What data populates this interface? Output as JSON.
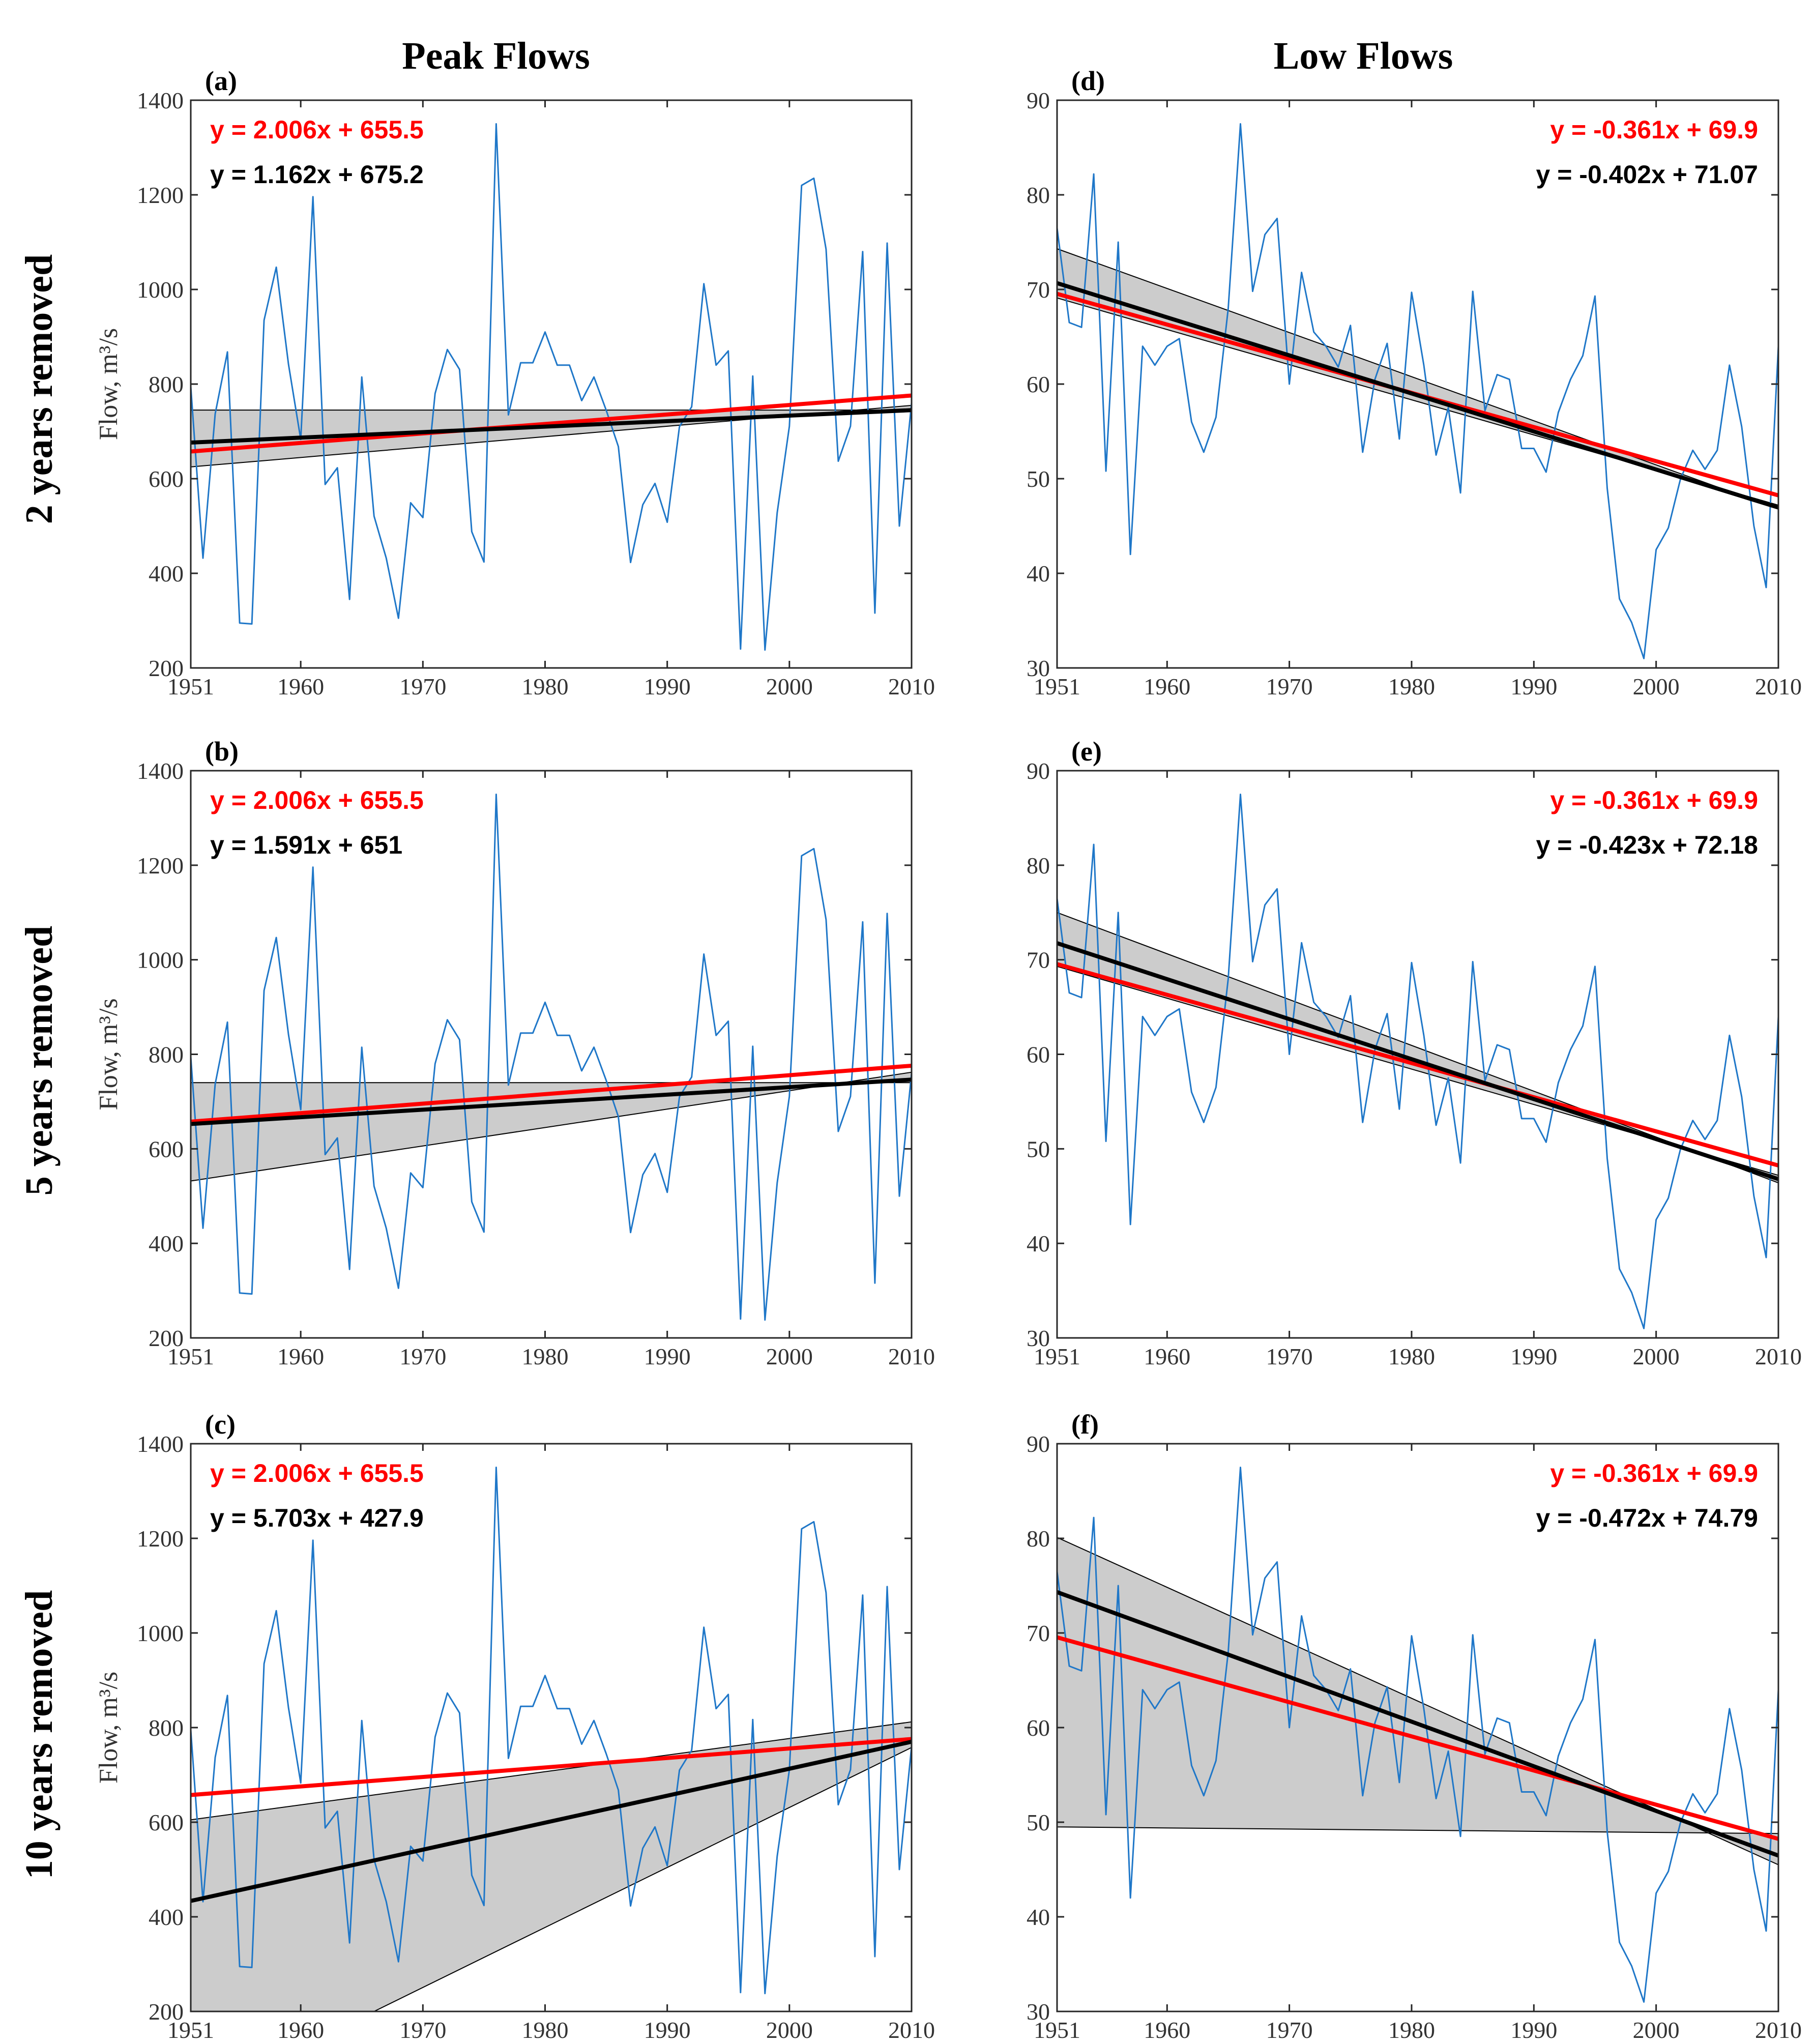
{
  "figure": {
    "col_titles": [
      "Peak Flows",
      "Low Flows"
    ],
    "row_titles": [
      "2 years removed",
      "5 years removed",
      "10 years removed"
    ],
    "colors": {
      "observed": "#1f77c8",
      "full_trend": "#ff0000",
      "reduced_trend": "#000000",
      "band": "#cccccc"
    }
  },
  "chart_data": [
    {
      "id": "a",
      "label": "(a)",
      "type": "line",
      "col": 0,
      "row": 0,
      "ylabel": "Flow, m³/s",
      "xlim": [
        1951,
        2010
      ],
      "ylim": [
        200,
        1400
      ],
      "xticks": [
        1951,
        1960,
        1970,
        1980,
        1990,
        2000,
        2010
      ],
      "yticks": [
        200,
        400,
        600,
        800,
        1000,
        1200,
        1400
      ],
      "x_start": 1951,
      "values": [
        795,
        432,
        737,
        868,
        295,
        293,
        935,
        1047,
        842,
        683,
        1196,
        588,
        623,
        345,
        815,
        521,
        432,
        305,
        549,
        518,
        780,
        873,
        831,
        488,
        424,
        1350,
        735,
        845,
        845,
        910,
        840,
        840,
        765,
        815,
        745,
        668,
        423,
        545,
        590,
        508,
        710,
        752,
        1012,
        840,
        870,
        240,
        817,
        238,
        528,
        711,
        1220,
        1235,
        1085,
        637,
        711,
        1080,
        316,
        1098,
        500,
        760
      ],
      "trend_full": {
        "slope": 2.006,
        "intercept": 655.5
      },
      "trend_reduced": {
        "slope": 1.162,
        "intercept": 675.2
      },
      "band": {
        "upper": [
          [
            1951,
            745
          ],
          [
            2010,
            745
          ]
        ],
        "lower": [
          [
            1951,
            625
          ],
          [
            2010,
            755
          ]
        ]
      },
      "eq_full": "y = 2.006x + 655.5",
      "eq_reduced": "y = 1.162x + 675.2",
      "eq_align": "left"
    },
    {
      "id": "b",
      "label": "(b)",
      "type": "line",
      "col": 0,
      "row": 1,
      "ylabel": "Flow, m³/s",
      "xlim": [
        1951,
        2010
      ],
      "ylim": [
        200,
        1400
      ],
      "xticks": [
        1951,
        1960,
        1970,
        1980,
        1990,
        2000,
        2010
      ],
      "yticks": [
        200,
        400,
        600,
        800,
        1000,
        1200,
        1400
      ],
      "x_start": 1951,
      "values": [
        795,
        432,
        737,
        868,
        295,
        293,
        935,
        1047,
        842,
        683,
        1196,
        588,
        623,
        345,
        815,
        521,
        432,
        305,
        549,
        518,
        780,
        873,
        831,
        488,
        424,
        1350,
        735,
        845,
        845,
        910,
        840,
        840,
        765,
        815,
        745,
        668,
        423,
        545,
        590,
        508,
        710,
        752,
        1012,
        840,
        870,
        240,
        817,
        238,
        528,
        711,
        1220,
        1235,
        1085,
        637,
        711,
        1080,
        316,
        1098,
        500,
        760
      ],
      "trend_full": {
        "slope": 2.006,
        "intercept": 655.5
      },
      "trend_reduced": {
        "slope": 1.591,
        "intercept": 651
      },
      "band": {
        "upper": [
          [
            1951,
            740
          ],
          [
            2010,
            740
          ]
        ],
        "lower": [
          [
            1951,
            532
          ],
          [
            2010,
            762
          ]
        ]
      },
      "eq_full": "y = 2.006x + 655.5",
      "eq_reduced": "y = 1.591x + 651",
      "eq_align": "left"
    },
    {
      "id": "c",
      "label": "(c)",
      "type": "line",
      "col": 0,
      "row": 2,
      "ylabel": "Flow, m³/s",
      "xlim": [
        1951,
        2010
      ],
      "ylim": [
        200,
        1400
      ],
      "xticks": [
        1951,
        1960,
        1970,
        1980,
        1990,
        2000,
        2010
      ],
      "yticks": [
        200,
        400,
        600,
        800,
        1000,
        1200,
        1400
      ],
      "x_start": 1951,
      "values": [
        795,
        432,
        737,
        868,
        295,
        293,
        935,
        1047,
        842,
        683,
        1196,
        588,
        623,
        345,
        815,
        521,
        432,
        305,
        549,
        518,
        780,
        873,
        831,
        488,
        424,
        1350,
        735,
        845,
        845,
        910,
        840,
        840,
        765,
        815,
        745,
        668,
        423,
        545,
        590,
        508,
        710,
        752,
        1012,
        840,
        870,
        240,
        817,
        238,
        528,
        711,
        1220,
        1235,
        1085,
        637,
        711,
        1080,
        316,
        1098,
        500,
        760
      ],
      "trend_full": {
        "slope": 2.006,
        "intercept": 655.5
      },
      "trend_reduced": {
        "slope": 5.703,
        "intercept": 427.9
      },
      "band": {
        "upper": [
          [
            1951,
            605
          ],
          [
            2010,
            812
          ]
        ],
        "lower": [
          [
            1951,
            200
          ],
          [
            1966,
            200
          ],
          [
            2010,
            758
          ]
        ]
      },
      "eq_full": "y = 2.006x + 655.5",
      "eq_reduced": "y = 5.703x + 427.9",
      "eq_align": "left"
    },
    {
      "id": "d",
      "label": "(d)",
      "type": "line",
      "col": 1,
      "row": 0,
      "xlim": [
        1951,
        2010
      ],
      "ylim": [
        30,
        90
      ],
      "xticks": [
        1951,
        1960,
        1970,
        1980,
        1990,
        2000,
        2010
      ],
      "yticks": [
        30,
        40,
        50,
        60,
        70,
        80,
        90
      ],
      "x_start": 1951,
      "values": [
        76.5,
        66.5,
        66,
        82.2,
        50.8,
        75,
        42,
        64,
        62,
        64,
        64.8,
        56,
        52.8,
        56.5,
        68,
        87.5,
        69.8,
        75.8,
        77.5,
        60,
        71.8,
        65.5,
        64,
        61.8,
        66.2,
        52.8,
        60.5,
        64.3,
        54.2,
        69.7,
        62,
        52.5,
        57.5,
        48.5,
        69.8,
        57.2,
        61,
        60.5,
        53.2,
        53.2,
        50.7,
        57,
        60.5,
        63,
        69.3,
        49,
        37.3,
        34.8,
        31,
        42.5,
        44.8,
        50,
        53,
        51,
        53,
        62,
        55.5,
        45,
        38.5,
        64
      ],
      "trend_full": {
        "slope": -0.361,
        "intercept": 69.9
      },
      "trend_reduced": {
        "slope": -0.402,
        "intercept": 71.07
      },
      "band": {
        "upper": [
          [
            1951,
            74.3
          ],
          [
            2010,
            46.8
          ]
        ],
        "lower": [
          [
            1951,
            69.1
          ],
          [
            2010,
            47.2
          ]
        ]
      },
      "eq_full": "y = -0.361x + 69.9",
      "eq_reduced": "y = -0.402x + 71.07",
      "eq_align": "right"
    },
    {
      "id": "e",
      "label": "(e)",
      "type": "line",
      "col": 1,
      "row": 1,
      "xlim": [
        1951,
        2010
      ],
      "ylim": [
        30,
        90
      ],
      "xticks": [
        1951,
        1960,
        1970,
        1980,
        1990,
        2000,
        2010
      ],
      "yticks": [
        30,
        40,
        50,
        60,
        70,
        80,
        90
      ],
      "x_start": 1951,
      "values": [
        76.5,
        66.5,
        66,
        82.2,
        50.8,
        75,
        42,
        64,
        62,
        64,
        64.8,
        56,
        52.8,
        56.5,
        68,
        87.5,
        69.8,
        75.8,
        77.5,
        60,
        71.8,
        65.5,
        64,
        61.8,
        66.2,
        52.8,
        60.5,
        64.3,
        54.2,
        69.7,
        62,
        52.5,
        57.5,
        48.5,
        69.8,
        57.2,
        61,
        60.5,
        53.2,
        53.2,
        50.7,
        57,
        60.5,
        63,
        69.3,
        49,
        37.3,
        34.8,
        31,
        42.5,
        44.8,
        50,
        53,
        51,
        53,
        62,
        55.5,
        45,
        38.5,
        64
      ],
      "trend_full": {
        "slope": -0.361,
        "intercept": 69.9
      },
      "trend_reduced": {
        "slope": -0.423,
        "intercept": 72.18
      },
      "band": {
        "upper": [
          [
            1951,
            75
          ],
          [
            2010,
            46.4
          ]
        ],
        "lower": [
          [
            1951,
            69.3
          ],
          [
            2010,
            47.2
          ]
        ]
      },
      "eq_full": "y = -0.361x + 69.9",
      "eq_reduced": "y = -0.423x + 72.18",
      "eq_align": "right"
    },
    {
      "id": "f",
      "label": "(f)",
      "type": "line",
      "col": 1,
      "row": 2,
      "xlim": [
        1951,
        2010
      ],
      "ylim": [
        30,
        90
      ],
      "xticks": [
        1951,
        1960,
        1970,
        1980,
        1990,
        2000,
        2010
      ],
      "yticks": [
        30,
        40,
        50,
        60,
        70,
        80,
        90
      ],
      "x_start": 1951,
      "values": [
        76.5,
        66.5,
        66,
        82.2,
        50.8,
        75,
        42,
        64,
        62,
        64,
        64.8,
        56,
        52.8,
        56.5,
        68,
        87.5,
        69.8,
        75.8,
        77.5,
        60,
        71.8,
        65.5,
        64,
        61.8,
        66.2,
        52.8,
        60.5,
        64.3,
        54.2,
        69.7,
        62,
        52.5,
        57.5,
        48.5,
        69.8,
        57.2,
        61,
        60.5,
        53.2,
        53.2,
        50.7,
        57,
        60.5,
        63,
        69.3,
        49,
        37.3,
        34.8,
        31,
        42.5,
        44.8,
        50,
        53,
        51,
        53,
        62,
        55.5,
        45,
        38.5,
        64
      ],
      "trend_full": {
        "slope": -0.361,
        "intercept": 69.9
      },
      "trend_reduced": {
        "slope": -0.472,
        "intercept": 74.79
      },
      "band": {
        "upper": [
          [
            1951,
            80.1
          ],
          [
            2010,
            45.5
          ]
        ],
        "lower": [
          [
            1951,
            49.5
          ],
          [
            2010,
            48.8
          ]
        ]
      },
      "eq_full": "y = -0.361x + 69.9",
      "eq_reduced": "y = -0.472x + 74.79",
      "eq_align": "right"
    }
  ]
}
